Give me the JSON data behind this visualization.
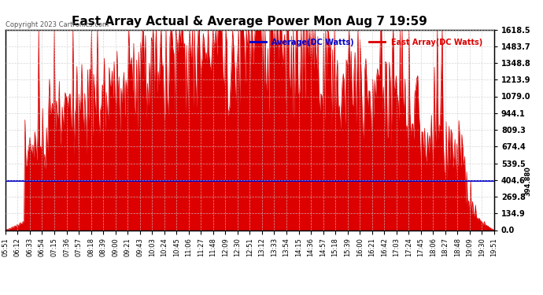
{
  "title": "East Array Actual & Average Power Mon Aug 7 19:59",
  "copyright": "Copyright 2023 Cartronics.com",
  "legend_avg": "Average(DC Watts)",
  "legend_east": "East Array(DC Watts)",
  "avg_value": 394.88,
  "ymax": 1618.5,
  "yticks": [
    0.0,
    134.9,
    269.8,
    404.6,
    539.5,
    674.4,
    809.3,
    944.1,
    1079.0,
    1213.9,
    1348.8,
    1483.7,
    1618.5
  ],
  "xtick_labels": [
    "05:51",
    "06:12",
    "06:33",
    "06:54",
    "07:15",
    "07:36",
    "07:57",
    "08:18",
    "08:39",
    "09:00",
    "09:21",
    "09:43",
    "10:03",
    "10:24",
    "10:45",
    "11:06",
    "11:27",
    "11:48",
    "12:09",
    "12:30",
    "12:51",
    "13:12",
    "13:33",
    "13:54",
    "14:15",
    "14:36",
    "14:57",
    "15:18",
    "15:39",
    "16:00",
    "16:21",
    "16:42",
    "17:03",
    "17:24",
    "17:45",
    "18:06",
    "18:27",
    "18:48",
    "19:09",
    "19:30",
    "19:51"
  ],
  "bg_color": "#ffffff",
  "grid_color": "#cccccc",
  "red_color": "#dd0000",
  "blue_color": "#0000cc",
  "title_color": "#000000",
  "copyright_color": "#555555"
}
